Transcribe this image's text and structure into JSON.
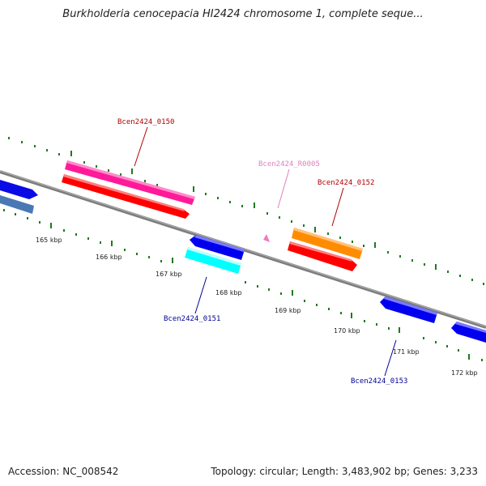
{
  "title": "Burkholderia cenocepacia HI2424 chromosome 1, complete seque...",
  "footer": {
    "accession": "Accession: NC_008542",
    "summary": "Topology: circular; Length: 3,483,902 bp; Genes: 3,233"
  },
  "colors": {
    "backbone": "#7d7d7d",
    "tick": "#1f7a1f",
    "label_red": "#b00000",
    "label_pink": "#e080c0",
    "label_blue": "#00009a"
  },
  "ticks": [
    {
      "label": "165 kbp"
    },
    {
      "label": "166 kbp"
    },
    {
      "label": "167 kbp"
    },
    {
      "label": "168 kbp"
    },
    {
      "label": "169 kbp"
    },
    {
      "label": "170 kbp"
    },
    {
      "label": "171 kbp"
    },
    {
      "label": "172 kbp"
    }
  ],
  "features": [
    {
      "name": "Bcen2424_0150",
      "color": "#ff1a9a",
      "label_color": "#b00000"
    },
    {
      "name": "Bcen2424_R0005",
      "color": "#f07ac0",
      "label_color": "#e080c0"
    },
    {
      "name": "Bcen2424_0152",
      "color": "#ff8c00",
      "label_color": "#b00000"
    },
    {
      "name": "Bcen2424_0151",
      "color": "#00ffff",
      "label_color": "#00009a"
    },
    {
      "name": "Bcen2424_0153",
      "color": "#0000ee",
      "label_color": "#00009a"
    }
  ]
}
